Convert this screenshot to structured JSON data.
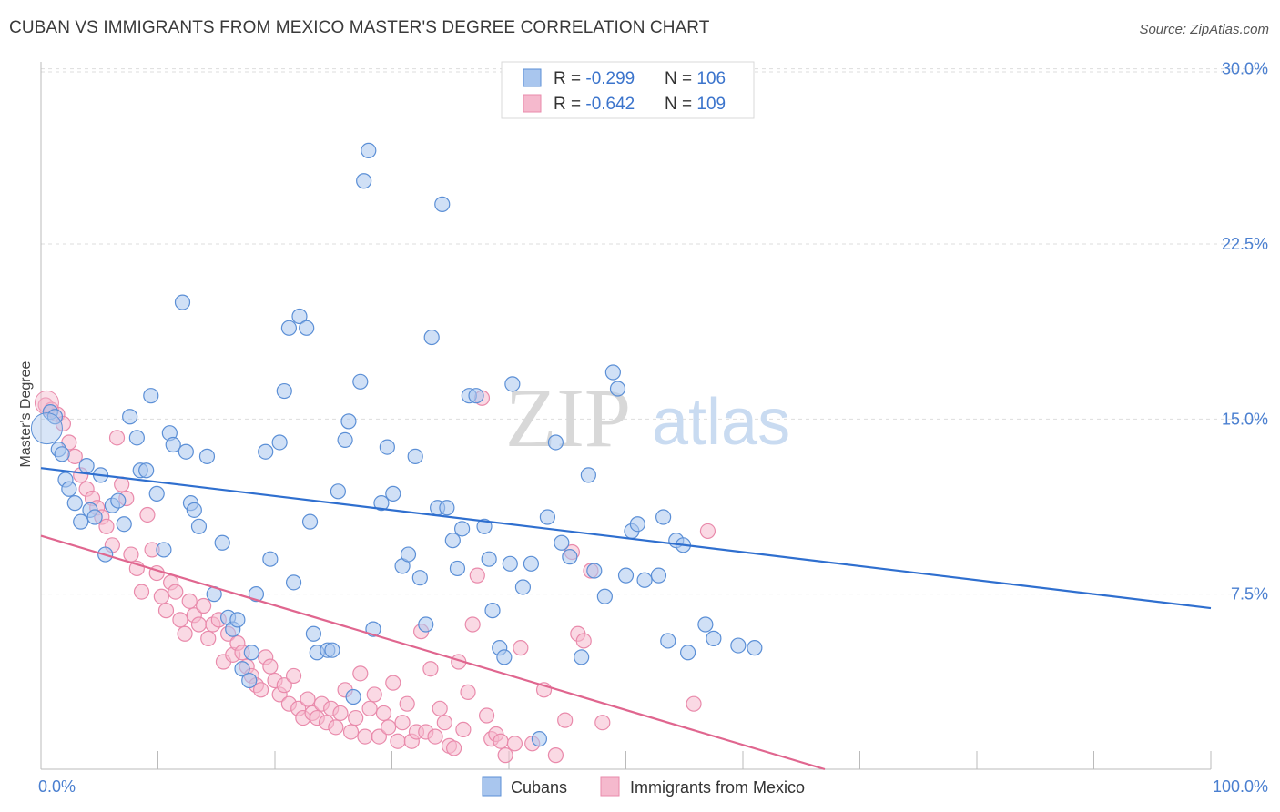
{
  "title": "CUBAN VS IMMIGRANTS FROM MEXICO MASTER'S DEGREE CORRELATION CHART",
  "source": "Source: ZipAtlas.com",
  "watermark": {
    "zip": "ZIP",
    "atlas": "atlas"
  },
  "colors": {
    "blue_fill": "#a9c6ee",
    "blue_stroke": "#5b8fd6",
    "blue_line": "#2f6fcf",
    "pink_fill": "#f5b9cd",
    "pink_stroke": "#e98aab",
    "pink_line": "#e0668f",
    "tick_label": "#4a7fd0",
    "grid": "#dddddd"
  },
  "legend": {
    "rows": [
      {
        "r_label": "R = ",
        "r_value": "-0.299",
        "n_label": "N = ",
        "n_value": "106"
      },
      {
        "r_label": "R = ",
        "r_value": "-0.642",
        "n_label": "N = ",
        "n_value": "109"
      }
    ]
  },
  "chart_data": {
    "type": "scatter",
    "title": "CUBAN VS IMMIGRANTS FROM MEXICO MASTER'S DEGREE CORRELATION CHART",
    "xlabel": "",
    "ylabel": "Master's Degree",
    "xlim": [
      0,
      100
    ],
    "ylim": [
      0,
      31
    ],
    "x_tick_labels": [
      "0.0%",
      "100.0%"
    ],
    "y_ticks": [
      7.5,
      15.0,
      22.5,
      30.0
    ],
    "y_tick_labels": [
      "7.5%",
      "15.0%",
      "22.5%",
      "30.0%"
    ],
    "grid": "horizontal dashed",
    "legend_position": "top-center",
    "series": [
      {
        "name": "Cubans",
        "color": "#a9c6ee",
        "trend": {
          "x": [
            0,
            100
          ],
          "y": [
            12.9,
            6.9
          ]
        },
        "points": [
          [
            0.8,
            15.3
          ],
          [
            1.2,
            15.1
          ],
          [
            1.5,
            13.7
          ],
          [
            1.8,
            13.5
          ],
          [
            2.1,
            12.4
          ],
          [
            2.4,
            12.0
          ],
          [
            2.9,
            11.4
          ],
          [
            3.4,
            10.6
          ],
          [
            3.9,
            13.0
          ],
          [
            4.2,
            11.1
          ],
          [
            4.6,
            10.8
          ],
          [
            5.1,
            12.6
          ],
          [
            5.5,
            9.2
          ],
          [
            6.1,
            11.3
          ],
          [
            6.6,
            11.5
          ],
          [
            7.1,
            10.5
          ],
          [
            7.6,
            15.1
          ],
          [
            8.2,
            14.2
          ],
          [
            8.5,
            12.8
          ],
          [
            9.0,
            12.8
          ],
          [
            9.4,
            16.0
          ],
          [
            9.9,
            11.8
          ],
          [
            10.5,
            9.4
          ],
          [
            11.0,
            14.4
          ],
          [
            11.3,
            13.9
          ],
          [
            12.1,
            20.0
          ],
          [
            12.4,
            13.6
          ],
          [
            12.8,
            11.4
          ],
          [
            13.1,
            11.1
          ],
          [
            13.5,
            10.4
          ],
          [
            14.2,
            13.4
          ],
          [
            14.8,
            7.5
          ],
          [
            15.5,
            9.7
          ],
          [
            16.0,
            6.5
          ],
          [
            16.4,
            6.0
          ],
          [
            16.8,
            6.4
          ],
          [
            17.2,
            4.3
          ],
          [
            17.8,
            3.8
          ],
          [
            18.0,
            5.0
          ],
          [
            18.4,
            7.5
          ],
          [
            19.2,
            13.6
          ],
          [
            19.6,
            9.0
          ],
          [
            20.4,
            14.0
          ],
          [
            20.8,
            16.2
          ],
          [
            21.2,
            18.9
          ],
          [
            21.6,
            8.0
          ],
          [
            22.1,
            19.4
          ],
          [
            22.7,
            18.9
          ],
          [
            23.0,
            10.6
          ],
          [
            23.3,
            5.8
          ],
          [
            23.6,
            5.0
          ],
          [
            24.5,
            5.1
          ],
          [
            24.9,
            5.1
          ],
          [
            25.4,
            11.9
          ],
          [
            26.0,
            14.1
          ],
          [
            26.3,
            14.9
          ],
          [
            26.7,
            3.1
          ],
          [
            27.3,
            16.6
          ],
          [
            27.6,
            25.2
          ],
          [
            28.0,
            26.5
          ],
          [
            28.4,
            6.0
          ],
          [
            29.1,
            11.4
          ],
          [
            29.6,
            13.8
          ],
          [
            30.1,
            11.8
          ],
          [
            30.9,
            8.7
          ],
          [
            31.4,
            9.2
          ],
          [
            32.0,
            13.4
          ],
          [
            32.4,
            8.2
          ],
          [
            32.9,
            6.2
          ],
          [
            33.4,
            18.5
          ],
          [
            33.9,
            11.2
          ],
          [
            34.3,
            24.2
          ],
          [
            34.7,
            11.2
          ],
          [
            35.2,
            9.8
          ],
          [
            35.6,
            8.6
          ],
          [
            36.0,
            10.3
          ],
          [
            36.6,
            16.0
          ],
          [
            37.2,
            16.0
          ],
          [
            37.9,
            10.4
          ],
          [
            38.3,
            9.0
          ],
          [
            38.6,
            6.8
          ],
          [
            39.2,
            5.2
          ],
          [
            39.6,
            4.8
          ],
          [
            40.1,
            8.8
          ],
          [
            40.3,
            16.5
          ],
          [
            41.2,
            7.8
          ],
          [
            41.9,
            8.8
          ],
          [
            42.6,
            1.3
          ],
          [
            43.3,
            10.8
          ],
          [
            44.0,
            14.0
          ],
          [
            44.5,
            9.7
          ],
          [
            45.2,
            9.1
          ],
          [
            46.2,
            4.8
          ],
          [
            46.8,
            12.6
          ],
          [
            47.3,
            8.5
          ],
          [
            48.2,
            7.4
          ],
          [
            48.9,
            17.0
          ],
          [
            49.3,
            16.3
          ],
          [
            50.0,
            8.3
          ],
          [
            50.5,
            10.2
          ],
          [
            51.0,
            10.5
          ],
          [
            51.6,
            8.1
          ],
          [
            52.8,
            8.3
          ],
          [
            53.2,
            10.8
          ],
          [
            53.6,
            5.5
          ],
          [
            54.3,
            9.8
          ],
          [
            54.9,
            9.6
          ],
          [
            55.3,
            5.0
          ],
          [
            56.8,
            6.2
          ],
          [
            57.5,
            5.6
          ],
          [
            59.6,
            5.3
          ],
          [
            61.0,
            5.2
          ]
        ]
      },
      {
        "name": "Immigrants from Mexico",
        "color": "#f5b9cd",
        "trend": {
          "x": [
            0,
            67
          ],
          "y": [
            10.0,
            0
          ]
        },
        "points": [
          [
            0.4,
            15.6
          ],
          [
            0.9,
            15.4
          ],
          [
            1.4,
            15.2
          ],
          [
            1.9,
            14.8
          ],
          [
            2.4,
            14.0
          ],
          [
            2.9,
            13.4
          ],
          [
            3.4,
            12.6
          ],
          [
            3.9,
            12.0
          ],
          [
            4.4,
            11.6
          ],
          [
            4.8,
            11.2
          ],
          [
            5.2,
            10.8
          ],
          [
            5.6,
            10.4
          ],
          [
            6.1,
            9.6
          ],
          [
            6.5,
            14.2
          ],
          [
            6.9,
            12.2
          ],
          [
            7.3,
            11.6
          ],
          [
            7.7,
            9.2
          ],
          [
            8.2,
            8.6
          ],
          [
            8.6,
            7.6
          ],
          [
            9.1,
            10.9
          ],
          [
            9.5,
            9.4
          ],
          [
            9.9,
            8.4
          ],
          [
            10.3,
            7.4
          ],
          [
            10.7,
            6.8
          ],
          [
            11.1,
            8.0
          ],
          [
            11.5,
            7.6
          ],
          [
            11.9,
            6.4
          ],
          [
            12.3,
            5.8
          ],
          [
            12.7,
            7.2
          ],
          [
            13.1,
            6.6
          ],
          [
            13.5,
            6.2
          ],
          [
            13.9,
            7.0
          ],
          [
            14.3,
            5.6
          ],
          [
            14.7,
            6.2
          ],
          [
            15.2,
            6.4
          ],
          [
            15.6,
            4.6
          ],
          [
            16.0,
            5.8
          ],
          [
            16.4,
            4.9
          ],
          [
            16.8,
            5.4
          ],
          [
            17.2,
            5.0
          ],
          [
            17.6,
            4.4
          ],
          [
            18.0,
            4.0
          ],
          [
            18.4,
            3.6
          ],
          [
            18.8,
            3.4
          ],
          [
            19.2,
            4.8
          ],
          [
            19.6,
            4.4
          ],
          [
            20.0,
            3.8
          ],
          [
            20.4,
            3.2
          ],
          [
            20.8,
            3.6
          ],
          [
            21.2,
            2.8
          ],
          [
            21.6,
            4.0
          ],
          [
            22.0,
            2.6
          ],
          [
            22.4,
            2.2
          ],
          [
            22.8,
            3.0
          ],
          [
            23.2,
            2.4
          ],
          [
            23.6,
            2.2
          ],
          [
            24.0,
            2.8
          ],
          [
            24.4,
            2.0
          ],
          [
            24.8,
            2.6
          ],
          [
            25.2,
            1.8
          ],
          [
            25.6,
            2.4
          ],
          [
            26.0,
            3.4
          ],
          [
            26.5,
            1.6
          ],
          [
            26.9,
            2.2
          ],
          [
            27.3,
            4.1
          ],
          [
            27.7,
            1.4
          ],
          [
            28.1,
            2.6
          ],
          [
            28.5,
            3.2
          ],
          [
            28.9,
            1.4
          ],
          [
            29.3,
            2.4
          ],
          [
            29.7,
            1.8
          ],
          [
            30.1,
            3.7
          ],
          [
            30.5,
            1.2
          ],
          [
            30.9,
            2.0
          ],
          [
            31.3,
            2.8
          ],
          [
            31.7,
            1.2
          ],
          [
            32.1,
            1.6
          ],
          [
            32.5,
            5.9
          ],
          [
            32.9,
            1.6
          ],
          [
            33.3,
            4.3
          ],
          [
            33.7,
            1.4
          ],
          [
            34.1,
            2.6
          ],
          [
            34.5,
            2.0
          ],
          [
            34.9,
            1.0
          ],
          [
            35.3,
            0.9
          ],
          [
            35.7,
            4.6
          ],
          [
            36.1,
            1.7
          ],
          [
            36.5,
            3.3
          ],
          [
            36.9,
            6.2
          ],
          [
            37.3,
            8.3
          ],
          [
            37.7,
            15.9
          ],
          [
            38.1,
            2.3
          ],
          [
            38.5,
            1.3
          ],
          [
            38.9,
            1.5
          ],
          [
            39.3,
            1.2
          ],
          [
            39.7,
            0.6
          ],
          [
            40.5,
            1.1
          ],
          [
            41.0,
            5.2
          ],
          [
            42.0,
            1.1
          ],
          [
            43.0,
            3.4
          ],
          [
            44.0,
            0.6
          ],
          [
            44.8,
            2.1
          ],
          [
            45.4,
            9.3
          ],
          [
            45.9,
            5.8
          ],
          [
            46.4,
            5.5
          ],
          [
            47.0,
            8.5
          ],
          [
            48.0,
            2.0
          ],
          [
            55.8,
            2.8
          ],
          [
            57.0,
            10.2
          ]
        ]
      }
    ],
    "legend_entries": [
      "Cubans",
      "Immigrants from Mexico"
    ]
  }
}
